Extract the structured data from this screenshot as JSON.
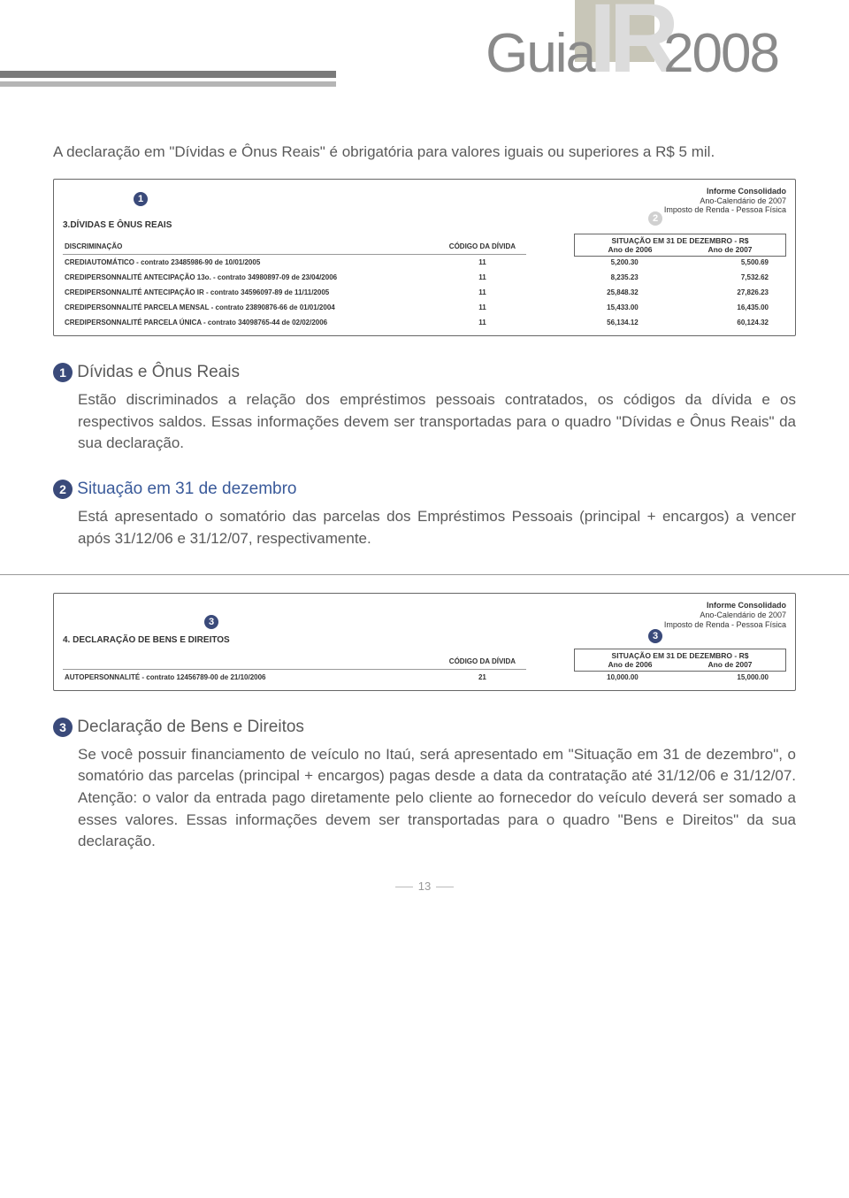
{
  "header": {
    "guia": "Guia",
    "ir": "IR",
    "year": "2008"
  },
  "intro": "A declaração em \"Dívidas e Ônus Reais\" é obrigatória para valores iguais ou superiores a R$ 5 mil.",
  "report1": {
    "consolidado": "Informe Consolidado",
    "calendario": "Ano-Calendário de 2007",
    "imposto": "Imposto de Renda - Pessoa Física",
    "section": "3.DÍVIDAS E ÔNUS REAIS",
    "col_disc": "DISCRIMINAÇÃO",
    "col_cod": "CÓDIGO DA DÍVIDA",
    "sit_title": "SITUAÇÃO EM 31 DE DEZEMBRO - R$",
    "ano2006": "Ano de 2006",
    "ano2007": "Ano de 2007",
    "rows": [
      {
        "d": "CREDIAUTOMÁTICO - contrato 23485986-90 de 10/01/2005",
        "c": "11",
        "v1": "5,200.30",
        "v2": "5,500.69"
      },
      {
        "d": "CREDIPERSONNALITÉ ANTECIPAÇÃO 13o. - contrato 34980897-09 de 23/04/2006",
        "c": "11",
        "v1": "8,235.23",
        "v2": "7,532.62"
      },
      {
        "d": "CREDIPERSONNALITÉ ANTECIPAÇÃO IR  - contrato 34596097-89 de 11/11/2005",
        "c": "11",
        "v1": "25,848.32",
        "v2": "27,826.23"
      },
      {
        "d": "CREDIPERSONNALITÉ PARCELA MENSAL - contrato 23890876-66 de 01/01/2004",
        "c": "11",
        "v1": "15,433.00",
        "v2": "16,435.00"
      },
      {
        "d": "CREDIPERSONNALITÉ PARCELA ÚNICA - contrato 34098765-44 de 02/02/2006",
        "c": "11",
        "v1": "56,134.12",
        "v2": "60,124.32"
      }
    ]
  },
  "item1": {
    "num": "1",
    "title": "Dívidas e Ônus Reais",
    "body": "Estão discriminados a relação dos empréstimos pessoais contratados, os códigos da dívida e os respectivos saldos. Essas informações devem ser transportadas para o quadro \"Dívidas e Ônus Reais\" da sua declaração."
  },
  "item2": {
    "num": "2",
    "title": "Situação em 31 de dezembro",
    "body": "Está apresentado o somatório das parcelas dos Empréstimos Pessoais (principal + encargos) a vencer após 31/12/06 e 31/12/07, respectivamente."
  },
  "report2": {
    "consolidado": "Informe Consolidado",
    "calendario": "Ano-Calendário de 2007",
    "imposto": "Imposto de Renda - Pessoa Física",
    "section": "4. DECLARAÇÃO DE BENS E DIREITOS",
    "col_cod": "CÓDIGO DA DÍVIDA",
    "sit_title": "SITUAÇÃO EM 31 DE DEZEMBRO - R$",
    "ano2006": "Ano de 2006",
    "ano2007": "Ano de 2007",
    "rows": [
      {
        "d": "AUTOPERSONNALITÉ  - contrato 12456789-00 de 21/10/2006",
        "c": "21",
        "v1": "10,000.00",
        "v2": "15,000.00"
      }
    ]
  },
  "item3": {
    "num": "3",
    "title": "Declaração de Bens e Direitos",
    "body": "Se você possuir financiamento de veículo no Itaú, será apresentado em \"Situação em 31 de dezembro\", o somatório das parcelas (principal + encargos) pagas desde a data da contratação até 31/12/06 e 31/12/07. Atenção: o valor da entrada pago diretamente pelo cliente ao fornecedor do veículo deverá ser somado a esses valores. Essas informações devem ser transportadas para o quadro \"Bens e Direitos\" da sua declaração."
  },
  "page": "13"
}
